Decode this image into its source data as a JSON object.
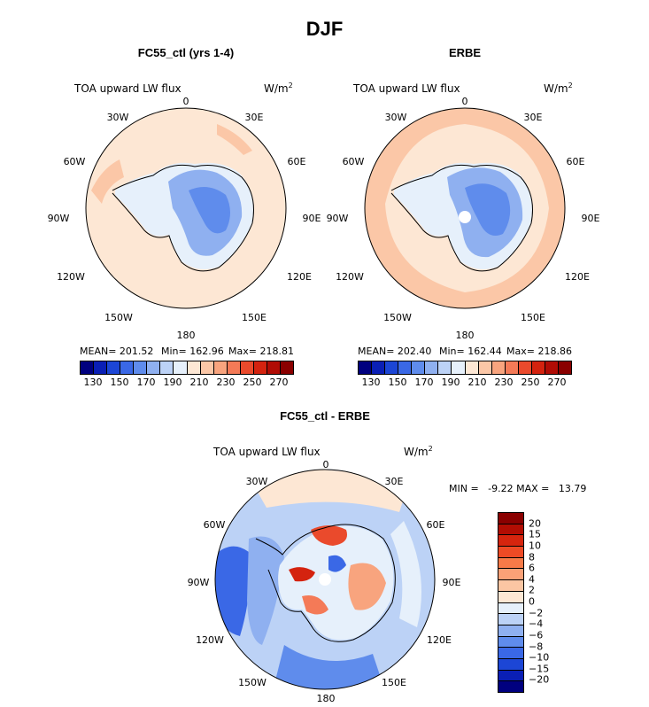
{
  "figure_title": "DJF",
  "panels": {
    "left": {
      "title": "FC55_ctl (yrs 1-4)",
      "field": "TOA upward LW flux",
      "units": "W/m",
      "units_sup": "2",
      "mean_text": "MEAN= 201.52",
      "min_text": "Min= 162.96",
      "max_text": "Max= 218.81"
    },
    "right": {
      "title": "ERBE",
      "field": "TOA upward LW flux",
      "units": "W/m",
      "units_sup": "2",
      "mean_text": "MEAN= 202.40",
      "min_text": "Min= 162.44",
      "max_text": "Max= 218.86"
    },
    "bottom": {
      "title": "FC55_ctl - ERBE",
      "field": "TOA upward LW flux",
      "units": "W/m",
      "units_sup": "2",
      "minmax_text": "MIN =   -9.22 MAX =   13.79"
    }
  },
  "longitude_labels": {
    "top": "0",
    "nnw": "30W",
    "nne": "30E",
    "wnw": "60W",
    "ene": "60E",
    "west": "90W",
    "east": "90E",
    "wsw": "120W",
    "ese": "120E",
    "ssw": "150W",
    "sse": "150E",
    "bottom": "180"
  },
  "abs_colorbar": {
    "labels": [
      "130",
      "150",
      "170",
      "190",
      "210",
      "230",
      "250",
      "270"
    ],
    "colors": [
      "#00007f",
      "#0a1fb5",
      "#1c46d6",
      "#3a68e6",
      "#5f8cec",
      "#8fb0f0",
      "#bcd2f6",
      "#e6f0fb",
      "#fde7d4",
      "#fbc7a7",
      "#f8a47e",
      "#f47a57",
      "#ea4a2c",
      "#d4230f",
      "#b10c05",
      "#8a0000"
    ]
  },
  "diff_colorbar": {
    "labels": [
      "20",
      "15",
      "10",
      "8",
      "6",
      "4",
      "2",
      "0",
      "−2",
      "−4",
      "−6",
      "−8",
      "−10",
      "−15",
      "−20"
    ],
    "colors": [
      "#8a0000",
      "#b20d03",
      "#d6250e",
      "#ee4a25",
      "#f77a48",
      "#fba177",
      "#fbc6a3",
      "#fde7d4",
      "#e6f0fb",
      "#bcd2f6",
      "#8fb0f0",
      "#5f8cec",
      "#3a68e6",
      "#1c46d6",
      "#0a1fb5",
      "#00007f"
    ]
  },
  "colors": {
    "ocean_light": "#fde7d4",
    "ocean_warm": "#fbc7a7",
    "ice_light": "#e6f0fb",
    "ice_mid": "#8fb0f0",
    "ice_deep": "#5f8cec",
    "ice_core": "#3a68e6",
    "diff_blue": "#8fb0f0",
    "diff_blue_deep": "#3a68e6",
    "diff_red": "#ea4a2c"
  }
}
